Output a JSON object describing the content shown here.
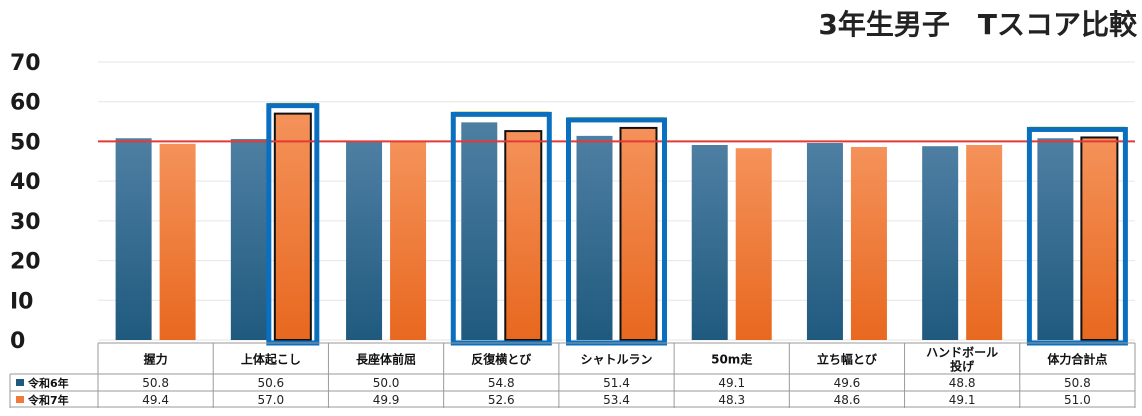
{
  "chart_data": {
    "type": "bar",
    "title": "3年生男子　Tスコア比較",
    "categories": [
      "握力",
      "上体起こし",
      "長座体前屈",
      "反復横とび",
      "シャトルラン",
      "50m走",
      "立ち幅とび",
      "ハンドボール投げ",
      "体力合計点"
    ],
    "category_lines": [
      [
        "握力"
      ],
      [
        "上体起こし"
      ],
      [
        "長座体前屈"
      ],
      [
        "反復横とび"
      ],
      [
        "シャトルラン"
      ],
      [
        "50m走"
      ],
      [
        "立ち幅とび"
      ],
      [
        "ハンドボール",
        "投げ"
      ],
      [
        "体力合計点"
      ]
    ],
    "series": [
      {
        "name": "令和6年",
        "values": [
          50.8,
          50.6,
          50.0,
          54.8,
          51.4,
          49.1,
          49.6,
          48.8,
          50.8
        ],
        "color": "#1f5a7e"
      },
      {
        "name": "令和7年",
        "values": [
          49.4,
          57.0,
          49.9,
          52.6,
          53.4,
          48.3,
          48.6,
          49.1,
          51.0
        ],
        "color": "#ee7a3c"
      }
    ],
    "value_labels": [
      [
        "50.8",
        "50.6",
        "50.0",
        "54.8",
        "51.4",
        "49.1",
        "49.6",
        "48.8",
        "50.8"
      ],
      [
        "49.4",
        "57.0",
        "49.9",
        "52.6",
        "53.4",
        "48.3",
        "48.6",
        "49.1",
        "51.0"
      ]
    ],
    "ylim": [
      0,
      70
    ],
    "yticks": [
      "0",
      "I0",
      "20",
      "30",
      "40",
      "50",
      "60",
      "70"
    ],
    "reference_line": {
      "value": 50,
      "color": "#e53935"
    },
    "highlighted_categories": [
      1,
      3,
      4,
      8
    ],
    "highlight_color": "#0a6fbf",
    "grid": true,
    "legend": "data-table"
  }
}
